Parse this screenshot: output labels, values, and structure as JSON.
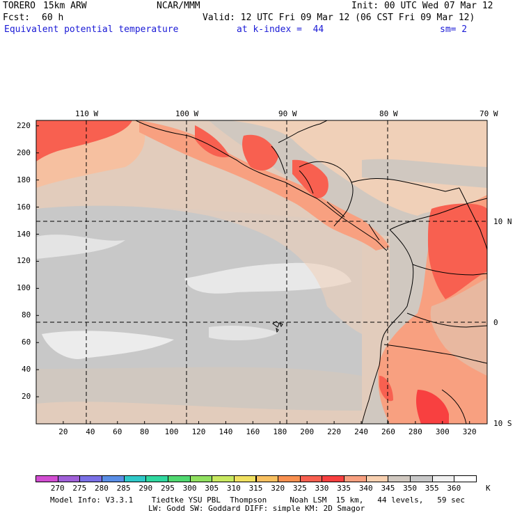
{
  "header": {
    "model": "TORERO",
    "resolution": "15km ARW",
    "org": "NCAR/MMM",
    "init": "Init: 00 UTC Wed 07 Mar 12",
    "fcst_label": "Fcst:",
    "fcst_hours": "60 h",
    "valid": "Valid: 12 UTC Fri 09 Mar 12 (06 CST Fri 09 Mar 12)",
    "field": "Equivalent potential temperature",
    "level": "at k-index =  44",
    "smoothing": "sm= 2"
  },
  "map": {
    "top_lon_labels": [
      "110 W",
      "100 W",
      "90 W",
      "80 W",
      "70 W"
    ],
    "right_lat_labels": [
      "10 N",
      "0",
      "10 S"
    ],
    "left_ticks": [
      "220",
      "200",
      "180",
      "160",
      "140",
      "120",
      "100",
      "80",
      "60",
      "40",
      "20"
    ],
    "bottom_ticks": [
      "20",
      "40",
      "60",
      "80",
      "100",
      "120",
      "140",
      "160",
      "180",
      "200",
      "220",
      "240",
      "260",
      "280",
      "300",
      "320"
    ]
  },
  "colorbar": {
    "unit": "K",
    "labels": [
      "270",
      "275",
      "280",
      "285",
      "290",
      "295",
      "300",
      "305",
      "310",
      "315",
      "320",
      "325",
      "330",
      "335",
      "340",
      "345",
      "350",
      "355",
      "360"
    ],
    "colors": [
      "#d24ed2",
      "#a060d8",
      "#7a70e6",
      "#5a8ee6",
      "#30c8c8",
      "#30d8a0",
      "#50d870",
      "#90e060",
      "#c8e860",
      "#f0e060",
      "#f8c060",
      "#f89050",
      "#f86050",
      "#f84040",
      "#f8a080",
      "#f8d0b0",
      "#d0c8c0",
      "#c8c8c8",
      "#f0f0f0",
      "#ffffff"
    ]
  },
  "footer": {
    "line1": "Model Info: V3.3.1    Tiedtke YSU PBL  Thompson     Noah LSM  15 km,   44 levels,   59 sec",
    "line2": "LW: Godd SW: Goddard DIFF: simple KM: 2D Smagor"
  }
}
